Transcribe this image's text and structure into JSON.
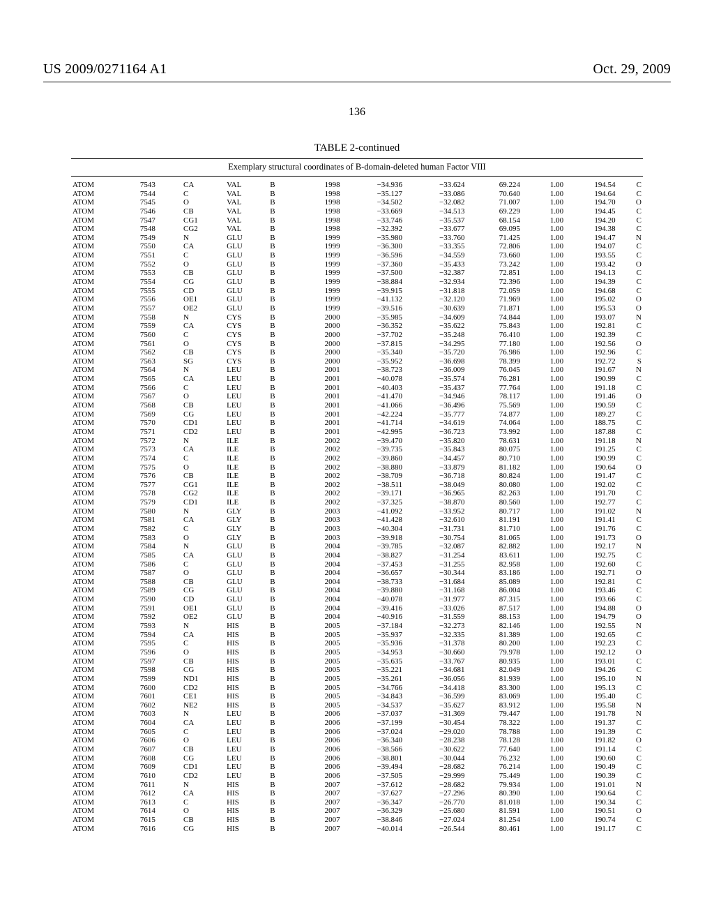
{
  "header": {
    "left": "US 2009/0271164 A1",
    "right": "Oct. 29, 2009"
  },
  "page_number": "136",
  "table": {
    "title": "TABLE 2-continued",
    "subtitle": "Exemplary structural coordinates of B-domain-deleted human Factor VIII",
    "rows": [
      [
        "ATOM",
        "7543",
        "CA",
        "VAL",
        "B",
        "1998",
        "−34.936",
        "−33.624",
        "69.224",
        "1.00",
        "194.54",
        "C"
      ],
      [
        "ATOM",
        "7544",
        "C",
        "VAL",
        "B",
        "1998",
        "−35.127",
        "−33.086",
        "70.640",
        "1.00",
        "194.64",
        "C"
      ],
      [
        "ATOM",
        "7545",
        "O",
        "VAL",
        "B",
        "1998",
        "−34.502",
        "−32.082",
        "71.007",
        "1.00",
        "194.70",
        "O"
      ],
      [
        "ATOM",
        "7546",
        "CB",
        "VAL",
        "B",
        "1998",
        "−33.669",
        "−34.513",
        "69.229",
        "1.00",
        "194.45",
        "C"
      ],
      [
        "ATOM",
        "7547",
        "CG1",
        "VAL",
        "B",
        "1998",
        "−33.746",
        "−35.537",
        "68.154",
        "1.00",
        "194.20",
        "C"
      ],
      [
        "ATOM",
        "7548",
        "CG2",
        "VAL",
        "B",
        "1998",
        "−32.392",
        "−33.677",
        "69.095",
        "1.00",
        "194.38",
        "C"
      ],
      [
        "ATOM",
        "7549",
        "N",
        "GLU",
        "B",
        "1999",
        "−35.980",
        "−33.760",
        "71.425",
        "1.00",
        "194.47",
        "N"
      ],
      [
        "ATOM",
        "7550",
        "CA",
        "GLU",
        "B",
        "1999",
        "−36.300",
        "−33.355",
        "72.806",
        "1.00",
        "194.07",
        "C"
      ],
      [
        "ATOM",
        "7551",
        "C",
        "GLU",
        "B",
        "1999",
        "−36.596",
        "−34.559",
        "73.660",
        "1.00",
        "193.55",
        "C"
      ],
      [
        "ATOM",
        "7552",
        "O",
        "GLU",
        "B",
        "1999",
        "−37.360",
        "−35.433",
        "73.242",
        "1.00",
        "193.42",
        "O"
      ],
      [
        "ATOM",
        "7553",
        "CB",
        "GLU",
        "B",
        "1999",
        "−37.500",
        "−32.387",
        "72.851",
        "1.00",
        "194.13",
        "C"
      ],
      [
        "ATOM",
        "7554",
        "CG",
        "GLU",
        "B",
        "1999",
        "−38.884",
        "−32.934",
        "72.396",
        "1.00",
        "194.39",
        "C"
      ],
      [
        "ATOM",
        "7555",
        "CD",
        "GLU",
        "B",
        "1999",
        "−39.915",
        "−31.818",
        "72.059",
        "1.00",
        "194.68",
        "C"
      ],
      [
        "ATOM",
        "7556",
        "OE1",
        "GLU",
        "B",
        "1999",
        "−41.132",
        "−32.120",
        "71.969",
        "1.00",
        "195.02",
        "O"
      ],
      [
        "ATOM",
        "7557",
        "OE2",
        "GLU",
        "B",
        "1999",
        "−39.516",
        "−30.639",
        "71.871",
        "1.00",
        "195.53",
        "O"
      ],
      [
        "ATOM",
        "7558",
        "N",
        "CYS",
        "B",
        "2000",
        "−35.985",
        "−34.609",
        "74.844",
        "1.00",
        "193.07",
        "N"
      ],
      [
        "ATOM",
        "7559",
        "CA",
        "CYS",
        "B",
        "2000",
        "−36.352",
        "−35.622",
        "75.843",
        "1.00",
        "192.81",
        "C"
      ],
      [
        "ATOM",
        "7560",
        "C",
        "CYS",
        "B",
        "2000",
        "−37.702",
        "−35.248",
        "76.410",
        "1.00",
        "192.39",
        "C"
      ],
      [
        "ATOM",
        "7561",
        "O",
        "CYS",
        "B",
        "2000",
        "−37.815",
        "−34.295",
        "77.180",
        "1.00",
        "192.56",
        "O"
      ],
      [
        "ATOM",
        "7562",
        "CB",
        "CYS",
        "B",
        "2000",
        "−35.340",
        "−35.720",
        "76.986",
        "1.00",
        "192.96",
        "C"
      ],
      [
        "ATOM",
        "7563",
        "SG",
        "CYS",
        "B",
        "2000",
        "−35.952",
        "−36.698",
        "78.399",
        "1.00",
        "192.72",
        "S"
      ],
      [
        "ATOM",
        "7564",
        "N",
        "LEU",
        "B",
        "2001",
        "−38.723",
        "−36.009",
        "76.045",
        "1.00",
        "191.67",
        "N"
      ],
      [
        "ATOM",
        "7565",
        "CA",
        "LEU",
        "B",
        "2001",
        "−40.078",
        "−35.574",
        "76.281",
        "1.00",
        "190.99",
        "C"
      ],
      [
        "ATOM",
        "7566",
        "C",
        "LEU",
        "B",
        "2001",
        "−40.403",
        "−35.437",
        "77.764",
        "1.00",
        "191.18",
        "C"
      ],
      [
        "ATOM",
        "7567",
        "O",
        "LEU",
        "B",
        "2001",
        "−41.470",
        "−34.946",
        "78.117",
        "1.00",
        "191.46",
        "O"
      ],
      [
        "ATOM",
        "7568",
        "CB",
        "LEU",
        "B",
        "2001",
        "−41.066",
        "−36.496",
        "75.569",
        "1.00",
        "190.59",
        "C"
      ],
      [
        "ATOM",
        "7569",
        "CG",
        "LEU",
        "B",
        "2001",
        "−42.224",
        "−35.777",
        "74.877",
        "1.00",
        "189.27",
        "C"
      ],
      [
        "ATOM",
        "7570",
        "CD1",
        "LEU",
        "B",
        "2001",
        "−41.714",
        "−34.619",
        "74.064",
        "1.00",
        "188.75",
        "C"
      ],
      [
        "ATOM",
        "7571",
        "CD2",
        "LEU",
        "B",
        "2001",
        "−42.995",
        "−36.723",
        "73.992",
        "1.00",
        "187.88",
        "C"
      ],
      [
        "ATOM",
        "7572",
        "N",
        "ILE",
        "B",
        "2002",
        "−39.470",
        "−35.820",
        "78.631",
        "1.00",
        "191.18",
        "N"
      ],
      [
        "ATOM",
        "7573",
        "CA",
        "ILE",
        "B",
        "2002",
        "−39.735",
        "−35.843",
        "80.075",
        "1.00",
        "191.25",
        "C"
      ],
      [
        "ATOM",
        "7574",
        "C",
        "ILE",
        "B",
        "2002",
        "−39.860",
        "−34.457",
        "80.710",
        "1.00",
        "190.99",
        "C"
      ],
      [
        "ATOM",
        "7575",
        "O",
        "ILE",
        "B",
        "2002",
        "−38.880",
        "−33.879",
        "81.182",
        "1.00",
        "190.64",
        "O"
      ],
      [
        "ATOM",
        "7576",
        "CB",
        "ILE",
        "B",
        "2002",
        "−38.709",
        "−36.718",
        "80.824",
        "1.00",
        "191.47",
        "C"
      ],
      [
        "ATOM",
        "7577",
        "CG1",
        "ILE",
        "B",
        "2002",
        "−38.511",
        "−38.049",
        "80.080",
        "1.00",
        "192.02",
        "C"
      ],
      [
        "ATOM",
        "7578",
        "CG2",
        "ILE",
        "B",
        "2002",
        "−39.171",
        "−36.965",
        "82.263",
        "1.00",
        "191.70",
        "C"
      ],
      [
        "ATOM",
        "7579",
        "CD1",
        "ILE",
        "B",
        "2002",
        "−37.325",
        "−38.870",
        "80.560",
        "1.00",
        "192.77",
        "C"
      ],
      [
        "ATOM",
        "7580",
        "N",
        "GLY",
        "B",
        "2003",
        "−41.092",
        "−33.952",
        "80.717",
        "1.00",
        "191.02",
        "N"
      ],
      [
        "ATOM",
        "7581",
        "CA",
        "GLY",
        "B",
        "2003",
        "−41.428",
        "−32.610",
        "81.191",
        "1.00",
        "191.41",
        "C"
      ],
      [
        "ATOM",
        "7582",
        "C",
        "GLY",
        "B",
        "2003",
        "−40.304",
        "−31.731",
        "81.710",
        "1.00",
        "191.76",
        "C"
      ],
      [
        "ATOM",
        "7583",
        "O",
        "GLY",
        "B",
        "2003",
        "−39.918",
        "−30.754",
        "81.065",
        "1.00",
        "191.73",
        "O"
      ],
      [
        "ATOM",
        "7584",
        "N",
        "GLU",
        "B",
        "2004",
        "−39.785",
        "−32.087",
        "82.882",
        "1.00",
        "192.17",
        "N"
      ],
      [
        "ATOM",
        "7585",
        "CA",
        "GLU",
        "B",
        "2004",
        "−38.827",
        "−31.254",
        "83.611",
        "1.00",
        "192.75",
        "C"
      ],
      [
        "ATOM",
        "7586",
        "C",
        "GLU",
        "B",
        "2004",
        "−37.453",
        "−31.255",
        "82.958",
        "1.00",
        "192.60",
        "C"
      ],
      [
        "ATOM",
        "7587",
        "O",
        "GLU",
        "B",
        "2004",
        "−36.657",
        "−30.344",
        "83.186",
        "1.00",
        "192.71",
        "O"
      ],
      [
        "ATOM",
        "7588",
        "CB",
        "GLU",
        "B",
        "2004",
        "−38.733",
        "−31.684",
        "85.089",
        "1.00",
        "192.81",
        "C"
      ],
      [
        "ATOM",
        "7589",
        "CG",
        "GLU",
        "B",
        "2004",
        "−39.880",
        "−31.168",
        "86.004",
        "1.00",
        "193.46",
        "C"
      ],
      [
        "ATOM",
        "7590",
        "CD",
        "GLU",
        "B",
        "2004",
        "−40.078",
        "−31.977",
        "87.315",
        "1.00",
        "193.66",
        "C"
      ],
      [
        "ATOM",
        "7591",
        "OE1",
        "GLU",
        "B",
        "2004",
        "−39.416",
        "−33.026",
        "87.517",
        "1.00",
        "194.88",
        "O"
      ],
      [
        "ATOM",
        "7592",
        "OE2",
        "GLU",
        "B",
        "2004",
        "−40.916",
        "−31.559",
        "88.153",
        "1.00",
        "194.79",
        "O"
      ],
      [
        "ATOM",
        "7593",
        "N",
        "HIS",
        "B",
        "2005",
        "−37.184",
        "−32.273",
        "82.146",
        "1.00",
        "192.55",
        "N"
      ],
      [
        "ATOM",
        "7594",
        "CA",
        "HIS",
        "B",
        "2005",
        "−35.937",
        "−32.335",
        "81.389",
        "1.00",
        "192.65",
        "C"
      ],
      [
        "ATOM",
        "7595",
        "C",
        "HIS",
        "B",
        "2005",
        "−35.936",
        "−31.378",
        "80.200",
        "1.00",
        "192.23",
        "C"
      ],
      [
        "ATOM",
        "7596",
        "O",
        "HIS",
        "B",
        "2005",
        "−34.953",
        "−30.660",
        "79.978",
        "1.00",
        "192.12",
        "O"
      ],
      [
        "ATOM",
        "7597",
        "CB",
        "HIS",
        "B",
        "2005",
        "−35.635",
        "−33.767",
        "80.935",
        "1.00",
        "193.01",
        "C"
      ],
      [
        "ATOM",
        "7598",
        "CG",
        "HIS",
        "B",
        "2005",
        "−35.221",
        "−34.681",
        "82.049",
        "1.00",
        "194.26",
        "C"
      ],
      [
        "ATOM",
        "7599",
        "ND1",
        "HIS",
        "B",
        "2005",
        "−35.261",
        "−36.056",
        "81.939",
        "1.00",
        "195.10",
        "N"
      ],
      [
        "ATOM",
        "7600",
        "CD2",
        "HIS",
        "B",
        "2005",
        "−34.766",
        "−34.418",
        "83.300",
        "1.00",
        "195.13",
        "C"
      ],
      [
        "ATOM",
        "7601",
        "CE1",
        "HIS",
        "B",
        "2005",
        "−34.843",
        "−36.599",
        "83.069",
        "1.00",
        "195.40",
        "C"
      ],
      [
        "ATOM",
        "7602",
        "NE2",
        "HIS",
        "B",
        "2005",
        "−34.537",
        "−35.627",
        "83.912",
        "1.00",
        "195.58",
        "N"
      ],
      [
        "ATOM",
        "7603",
        "N",
        "LEU",
        "B",
        "2006",
        "−37.037",
        "−31.369",
        "79.447",
        "1.00",
        "191.78",
        "N"
      ],
      [
        "ATOM",
        "7604",
        "CA",
        "LEU",
        "B",
        "2006",
        "−37.199",
        "−30.454",
        "78.322",
        "1.00",
        "191.37",
        "C"
      ],
      [
        "ATOM",
        "7605",
        "C",
        "LEU",
        "B",
        "2006",
        "−37.024",
        "−29.020",
        "78.788",
        "1.00",
        "191.39",
        "C"
      ],
      [
        "ATOM",
        "7606",
        "O",
        "LEU",
        "B",
        "2006",
        "−36.340",
        "−28.238",
        "78.128",
        "1.00",
        "191.82",
        "O"
      ],
      [
        "ATOM",
        "7607",
        "CB",
        "LEU",
        "B",
        "2006",
        "−38.566",
        "−30.622",
        "77.640",
        "1.00",
        "191.14",
        "C"
      ],
      [
        "ATOM",
        "7608",
        "CG",
        "LEU",
        "B",
        "2006",
        "−38.801",
        "−30.044",
        "76.232",
        "1.00",
        "190.60",
        "C"
      ],
      [
        "ATOM",
        "7609",
        "CD1",
        "LEU",
        "B",
        "2006",
        "−39.494",
        "−28.682",
        "76.214",
        "1.00",
        "190.49",
        "C"
      ],
      [
        "ATOM",
        "7610",
        "CD2",
        "LEU",
        "B",
        "2006",
        "−37.505",
        "−29.999",
        "75.449",
        "1.00",
        "190.39",
        "C"
      ],
      [
        "ATOM",
        "7611",
        "N",
        "HIS",
        "B",
        "2007",
        "−37.612",
        "−28.682",
        "79.934",
        "1.00",
        "191.01",
        "N"
      ],
      [
        "ATOM",
        "7612",
        "CA",
        "HIS",
        "B",
        "2007",
        "−37.627",
        "−27.296",
        "80.390",
        "1.00",
        "190.64",
        "C"
      ],
      [
        "ATOM",
        "7613",
        "C",
        "HIS",
        "B",
        "2007",
        "−36.347",
        "−26.770",
        "81.018",
        "1.00",
        "190.34",
        "C"
      ],
      [
        "ATOM",
        "7614",
        "O",
        "HIS",
        "B",
        "2007",
        "−36.329",
        "−25.680",
        "81.591",
        "1.00",
        "190.51",
        "O"
      ],
      [
        "ATOM",
        "7615",
        "CB",
        "HIS",
        "B",
        "2007",
        "−38.846",
        "−27.024",
        "81.254",
        "1.00",
        "190.74",
        "C"
      ],
      [
        "ATOM",
        "7616",
        "CG",
        "HIS",
        "B",
        "2007",
        "−40.014",
        "−26.544",
        "80.461",
        "1.00",
        "191.17",
        "C"
      ]
    ]
  }
}
